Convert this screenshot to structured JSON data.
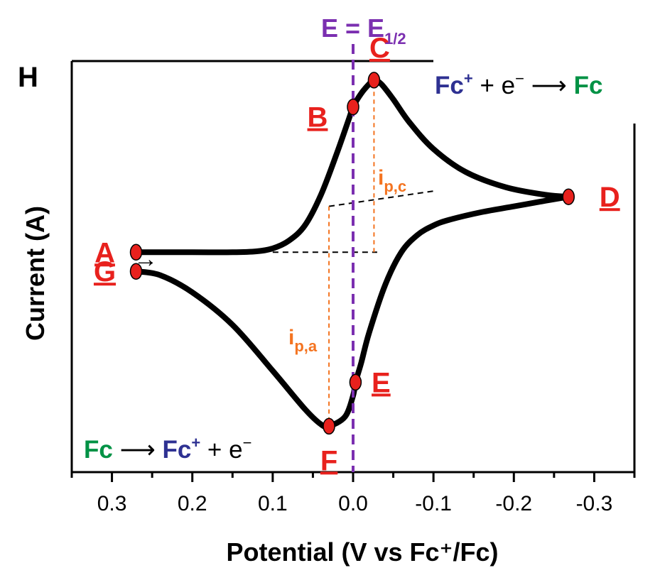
{
  "panel_label": "H",
  "half_wave_label": {
    "main": "E = E",
    "sub": "1/2"
  },
  "reaction_reduction": {
    "ox": "Fc",
    "ox_sup": "+",
    "mid": " + e",
    "mid_sup": "−",
    "arrow": " ⟶ ",
    "red": "Fc"
  },
  "reaction_oxidation": {
    "red": "Fc",
    "arrow": " ⟶ ",
    "ox": "Fc",
    "ox_sup": "+",
    "mid": " + e",
    "mid_sup": "−"
  },
  "colors": {
    "curve": "#000000",
    "points": "#e8211d",
    "labels": "#e8211d",
    "e_half_line": "#7b2fb0",
    "current_guides": "#f47421",
    "baseline": "#000000",
    "fc_plus": "#2e3192",
    "fc": "#009245"
  },
  "scan_arrow": "→",
  "peak_current_labels": {
    "cathodic": {
      "main": "i",
      "sub": "p,c"
    },
    "anodic": {
      "main": "i",
      "sub": "p,a"
    }
  },
  "chart_data": {
    "type": "line",
    "title": "",
    "xlabel": "Potential (V vs Fc⁺/Fc)",
    "ylabel": "Current (A)",
    "x_reversed": true,
    "xlim": [
      0.35,
      -0.35
    ],
    "ylim": [
      -1.15,
      1.0
    ],
    "y_tick_labels": false,
    "x_ticks": [
      0.3,
      0.2,
      0.1,
      0.0,
      -0.1,
      -0.2,
      -0.3
    ],
    "x_tick_labels": [
      "0.3",
      "0.2",
      "0.1",
      "0.0",
      "-0.1",
      "-0.2",
      "-0.3"
    ],
    "grid": false,
    "series": [
      {
        "segment": "forward",
        "x": [
          0.27,
          0.2,
          0.15,
          0.12,
          0.1,
          0.08,
          0.06,
          0.04,
          0.02,
          0.005,
          0.0,
          -0.01,
          -0.02,
          -0.026,
          -0.035,
          -0.05,
          -0.07,
          -0.1,
          -0.14,
          -0.19,
          -0.24,
          -0.268
        ],
        "y": [
          0.0,
          0.0,
          0.0,
          0.005,
          0.02,
          0.06,
          0.14,
          0.3,
          0.52,
          0.7,
          0.76,
          0.83,
          0.88,
          0.9,
          0.88,
          0.8,
          0.68,
          0.54,
          0.42,
          0.34,
          0.3,
          0.29
        ]
      },
      {
        "segment": "reverse",
        "x": [
          -0.268,
          -0.24,
          -0.2,
          -0.16,
          -0.12,
          -0.1,
          -0.08,
          -0.06,
          -0.04,
          -0.02,
          -0.01,
          -0.003,
          0.0,
          0.01,
          0.03,
          0.04,
          0.06,
          0.1,
          0.15,
          0.2,
          0.24,
          0.27
        ],
        "y": [
          0.29,
          0.27,
          0.24,
          0.21,
          0.17,
          0.14,
          0.09,
          0.0,
          -0.17,
          -0.42,
          -0.58,
          -0.68,
          -0.75,
          -0.86,
          -0.91,
          -0.9,
          -0.82,
          -0.62,
          -0.38,
          -0.21,
          -0.12,
          -0.1
        ]
      }
    ],
    "points": [
      {
        "label": "A",
        "x": 0.27,
        "y": 0.0
      },
      {
        "label": "B",
        "x": 0.0,
        "y": 0.76
      },
      {
        "label": "C",
        "x": -0.026,
        "y": 0.9
      },
      {
        "label": "D",
        "x": -0.268,
        "y": 0.29
      },
      {
        "label": "E",
        "x": -0.003,
        "y": -0.68
      },
      {
        "label": "F",
        "x": 0.03,
        "y": -0.91
      },
      {
        "label": "G",
        "x": 0.27,
        "y": -0.1
      }
    ],
    "e_half": 0.0,
    "baselines": [
      {
        "name": "forward-baseline",
        "x": [
          0.1,
          -0.03
        ],
        "y": [
          0.0,
          0.0
        ]
      },
      {
        "name": "reverse-baseline",
        "x": [
          0.03,
          -0.1
        ],
        "y": [
          0.24,
          0.32
        ]
      }
    ],
    "peak_current_guides": [
      {
        "name": "ipc",
        "x": -0.026,
        "y": [
          0.0,
          0.9
        ]
      },
      {
        "name": "ipa",
        "x": 0.03,
        "y": [
          0.24,
          -0.91
        ]
      }
    ]
  }
}
